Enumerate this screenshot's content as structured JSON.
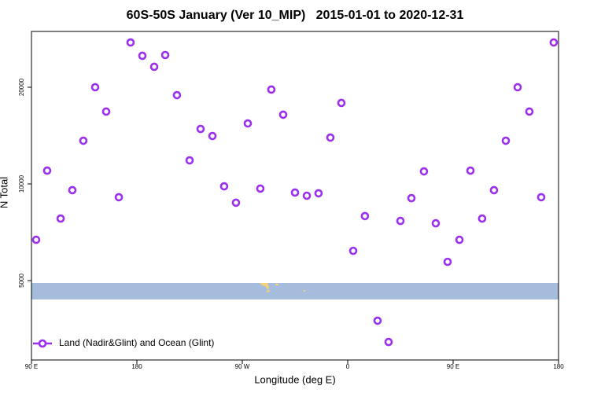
{
  "chart_data": {
    "type": "scatter",
    "title": "60S-50S January (Ver 10_MIP)   2015-01-01 to 2020-12-31",
    "x_label": "Longitude (deg E)",
    "y_label": "N Total",
    "log_y": true,
    "legend": "lower left",
    "xlim": [
      90,
      540
    ],
    "xticks": [
      {
        "value": 90,
        "label": "90 E"
      },
      180,
      {
        "value": 270,
        "label": "90 W"
      },
      {
        "value": 360,
        "label": "0"
      },
      {
        "value": 450,
        "label": "90 E"
      },
      {
        "value": 540,
        "label": "180"
      }
    ],
    "ylim": [
      2830,
      29840
    ],
    "yticks": [
      5000,
      10000,
      20000
    ],
    "series": [
      {
        "name": "Land (Nadir&Glint) and Ocean (Glint)",
        "color": "#9b30f0",
        "x": [
          94.0,
          103.4,
          114.9,
          124.9,
          134.3,
          144.4,
          153.8,
          164.6,
          174.6,
          184.7,
          194.8,
          204.2,
          214.2,
          225.0,
          234.4,
          244.5,
          254.5,
          264.6,
          274.7,
          285.4,
          294.8,
          304.9,
          315.0,
          325.1,
          335.1,
          345.2,
          354.6,
          364.7,
          374.7,
          385.5,
          394.9,
          405.0,
          414.4,
          425.1,
          435.2,
          445.3,
          455.4,
          464.8,
          474.8,
          484.9,
          495.0,
          505.1,
          515.1,
          525.2,
          535.9
        ],
        "values": [
          6700,
          11000,
          7800,
          9560,
          13630,
          20000,
          16800,
          9090,
          27570,
          25060,
          23160,
          25200,
          18900,
          11840,
          14830,
          14100,
          9830,
          8740,
          15430,
          9670,
          19670,
          16430,
          9400,
          9190,
          9350,
          13940,
          17870,
          6190,
          7940,
          3750,
          3220,
          7670,
          9030,
          10940,
          7540,
          5720,
          6700,
          11000,
          7800,
          9560,
          13630,
          20000,
          16800,
          9090,
          27570
        ]
      }
    ]
  }
}
